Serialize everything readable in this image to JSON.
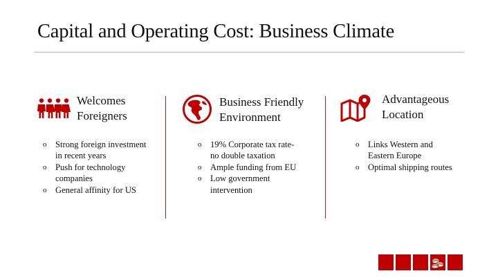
{
  "title": "Capital and Operating Cost: Business Climate",
  "columns": [
    {
      "icon": "people-group-icon",
      "title_line1": "Welcomes",
      "title_line2": "Foreigners",
      "bullets": [
        "Strong foreign investment in recent years",
        "Push for technology companies",
        "General affinity for US"
      ]
    },
    {
      "icon": "globe-americas-icon",
      "title_line1": "Business Friendly",
      "title_line2": "Environment",
      "bullets": [
        "19% Corporate tax rate-no double taxation",
        "Ample funding from EU",
        "Low government intervention"
      ]
    },
    {
      "icon": "map-pin-icon",
      "title_line1": "Advantageous",
      "title_line2": "Location",
      "bullets": [
        "Links Western and Eastern Europe",
        "Optimal shipping routes"
      ]
    }
  ],
  "bullet_marker": "o",
  "colors": {
    "accent": "#c00000",
    "divider": "#a31f24",
    "title_rule": "#e2a1a9"
  },
  "nav_buttons": [
    "nav-button-1",
    "nav-button-2",
    "nav-button-3",
    "coins-icon",
    "nav-button-5"
  ]
}
